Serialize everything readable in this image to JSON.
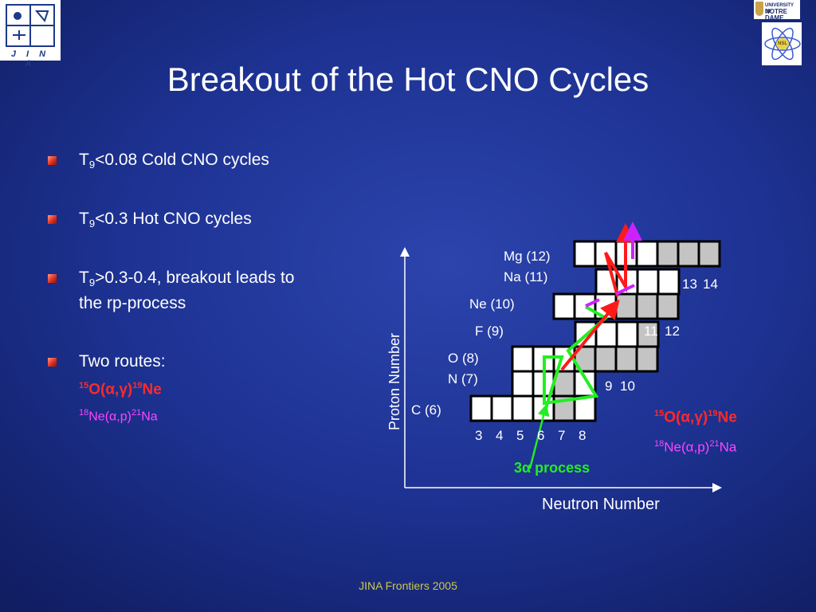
{
  "title": "Breakout of the Hot CNO Cycles",
  "logos": {
    "jina_text": "J I N A",
    "nd_line1": "UNIVERSITY OF",
    "nd_line2": "NOTRE DAME",
    "nsl_text": "NSL"
  },
  "bullets": [
    {
      "pre": "T",
      "sub": "9",
      "post": "<0.08 Cold CNO cycles"
    },
    {
      "pre": "T",
      "sub": "9",
      "post": "<0.3 Hot CNO cycles"
    },
    {
      "pre": "T",
      "sub": "9",
      "post": ">0.3-0.4, breakout leads to",
      "post2": "the rp-process"
    },
    {
      "pre": "Two routes:"
    }
  ],
  "routes": {
    "alpha_gamma": {
      "pre": "15",
      "a": "O(",
      "greek": "α,γ",
      "b": ")",
      "sup2": "19",
      "c": "Ne"
    },
    "alpha_p": {
      "pre": "18",
      "a": "Ne(",
      "greek": "α",
      "b": ",p)",
      "sup2": "21",
      "c": "Na"
    }
  },
  "diagram": {
    "y_axis_label": "Proton Number",
    "x_axis_label": "Neutron Number",
    "element_labels": [
      "Mg (12)",
      "Na (11)",
      "Ne (10)",
      "F (9)",
      "O (8)",
      "N (7)",
      "C (6)"
    ],
    "neutron_numbers_bottom": [
      "3",
      "4",
      "5",
      "6",
      "7",
      "8"
    ],
    "neutron_numbers_side": {
      "n9": "9",
      "n10": "10",
      "n11": "11",
      "n12": "12",
      "n13": "13",
      "n14": "14"
    },
    "triple_alpha_label": {
      "pre": "3",
      "greek": "α",
      "post": " process"
    },
    "colors": {
      "stable": "#ffffff",
      "unstable": "#c4c4c4",
      "red_path": "#ff1a1a",
      "green_path": "#22ee22",
      "magenta_path": "#cc22ff"
    }
  },
  "footer": "JINA Frontiers 2005"
}
